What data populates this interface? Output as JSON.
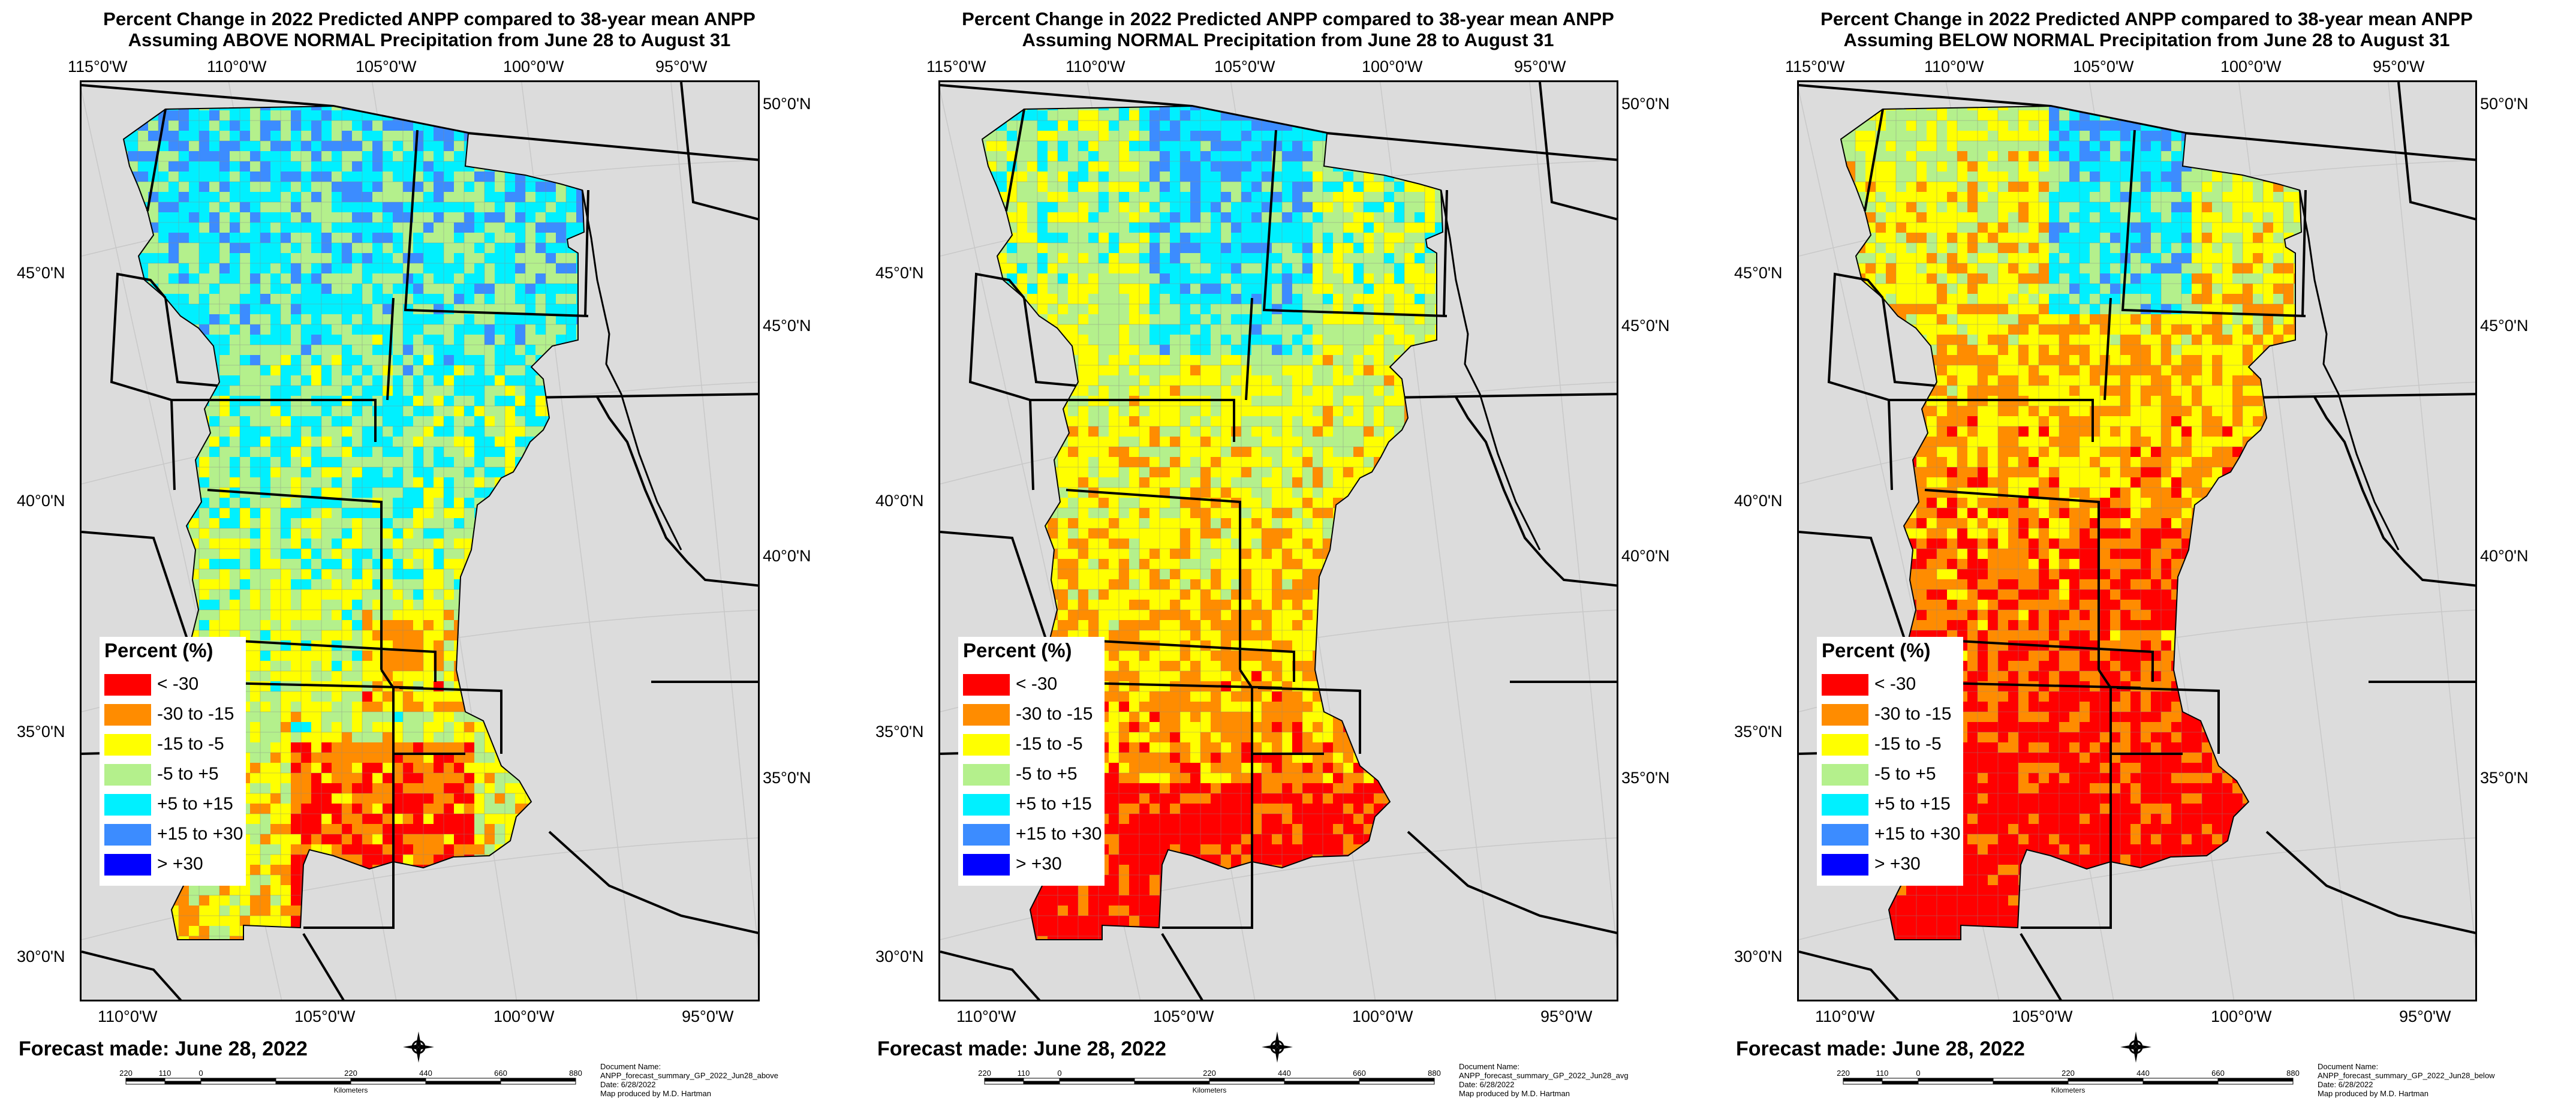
{
  "maps": [
    {
      "title_line1": "Percent Change in 2022 Predicted ANPP compared to 38-year mean ANPP",
      "title_line2": "Assuming ABOVE NORMAL Precipitation from June 28 to August 31",
      "scenario": "above",
      "doc_name_label": "Document Name:",
      "doc_name": "ANPP_forecast_summary_GP_2022_Jun28_above",
      "date": "Date: 6/28/2022",
      "producer": "Map produced by M.D. Hartman"
    },
    {
      "title_line1": "Percent Change in 2022 Predicted ANPP compared to 38-year mean ANPP",
      "title_line2": "Assuming NORMAL Precipitation from June 28 to August 31",
      "scenario": "normal",
      "doc_name_label": "Document Name:",
      "doc_name": "ANPP_forecast_summary_GP_2022_Jun28_avg",
      "date": "Date: 6/28/2022",
      "producer": "Map produced by M.D. Hartman"
    },
    {
      "title_line1": "Percent Change in 2022 Predicted ANPP compared to 38-year mean ANPP",
      "title_line2": "Assuming BELOW NORMAL Precipitation from June 28 to August 31",
      "scenario": "below",
      "doc_name_label": "Document Name:",
      "doc_name": "ANPP_forecast_summary_GP_2022_Jun28_below",
      "date": "Date: 6/28/2022",
      "producer": "Map produced by M.D. Hartman"
    }
  ],
  "top_lon_labels": [
    "115°0'W",
    "110°0'W",
    "105°0'W",
    "100°0'W",
    "95°0'W"
  ],
  "bottom_lon_labels": [
    "110°0'W",
    "105°0'W",
    "100°0'W",
    "95°0'W"
  ],
  "left_lat_labels": [
    "45°0'N",
    "40°0'N",
    "35°0'N",
    "30°0'N"
  ],
  "right_lat_labels": [
    "50°0'N",
    "45°0'N",
    "40°0'N",
    "35°0'N"
  ],
  "legend": {
    "title": "Percent (%)",
    "items": [
      {
        "label": "< -30",
        "color": "#ff0000"
      },
      {
        "label": "-30 to -15",
        "color": "#ff8c00"
      },
      {
        "label": "-15 to -5",
        "color": "#ffff00"
      },
      {
        "label": "-5 to +5",
        "color": "#b4f08c"
      },
      {
        "label": "+5 to +15",
        "color": "#00f0ff"
      },
      {
        "label": "+15 to +30",
        "color": "#3c8cff"
      },
      {
        "label": "> +30",
        "color": "#0000ff"
      }
    ]
  },
  "forecast_text": "Forecast made: June 28, 2022",
  "scale": {
    "labels": [
      "220",
      "110",
      "0",
      "220",
      "440",
      "660",
      "880"
    ],
    "unit": "Kilometers"
  },
  "compass_icon": "north-arrow-compass-icon"
}
